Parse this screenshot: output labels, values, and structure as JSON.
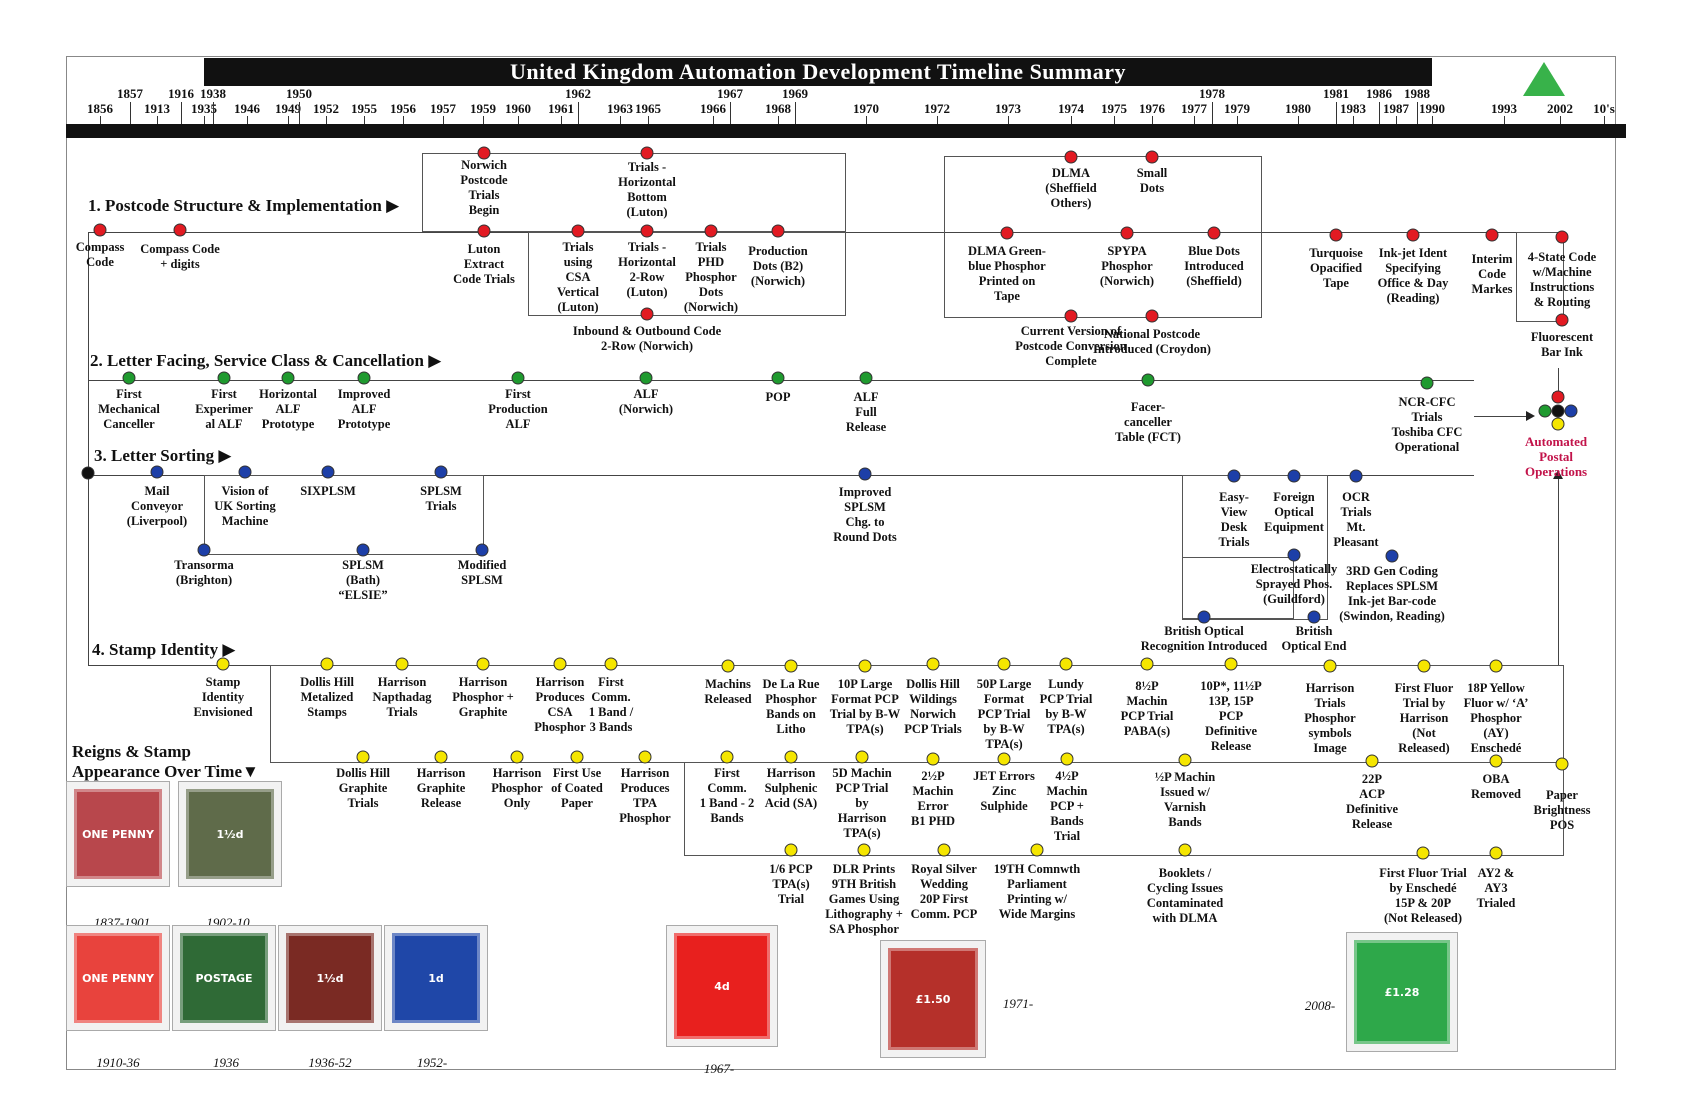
{
  "title": "United Kingdom Automation Development Timeline Summary",
  "years": [
    {
      "label": "1856",
      "row": "low"
    },
    {
      "label": "1857",
      "row": "high"
    },
    {
      "label": "1913",
      "row": "low"
    },
    {
      "label": "1916",
      "row": "high"
    },
    {
      "label": "1935",
      "row": "low"
    },
    {
      "label": "1938",
      "row": "high"
    },
    {
      "label": "1946",
      "row": "low"
    },
    {
      "label": "1949",
      "row": "low"
    },
    {
      "label": "1950",
      "row": "high"
    },
    {
      "label": "1952",
      "row": "low"
    },
    {
      "label": "1955",
      "row": "low"
    },
    {
      "label": "1956",
      "row": "low"
    },
    {
      "label": "1957",
      "row": "low"
    },
    {
      "label": "1959",
      "row": "low"
    },
    {
      "label": "1960",
      "row": "low"
    },
    {
      "label": "1961",
      "row": "low"
    },
    {
      "label": "1962",
      "row": "high"
    },
    {
      "label": "1963",
      "row": "low"
    },
    {
      "label": "1965",
      "row": "low"
    },
    {
      "label": "1966",
      "row": "low"
    },
    {
      "label": "1967",
      "row": "high"
    },
    {
      "label": "1968",
      "row": "low"
    },
    {
      "label": "1969",
      "row": "high"
    },
    {
      "label": "1970",
      "row": "low"
    },
    {
      "label": "1972",
      "row": "low"
    },
    {
      "label": "1973",
      "row": "low"
    },
    {
      "label": "1974",
      "row": "low"
    },
    {
      "label": "1975",
      "row": "low"
    },
    {
      "label": "1976",
      "row": "low"
    },
    {
      "label": "1977",
      "row": "low"
    },
    {
      "label": "1978",
      "row": "high"
    },
    {
      "label": "1979",
      "row": "low"
    },
    {
      "label": "1980",
      "row": "low"
    },
    {
      "label": "1981",
      "row": "high"
    },
    {
      "label": "1983",
      "row": "low"
    },
    {
      "label": "1986",
      "row": "high"
    },
    {
      "label": "1987",
      "row": "low"
    },
    {
      "label": "1988",
      "row": "high"
    },
    {
      "label": "1990",
      "row": "low"
    },
    {
      "label": "1993",
      "row": "low"
    },
    {
      "label": "2002",
      "row": "low"
    },
    {
      "label": "10's",
      "row": "low"
    }
  ],
  "sections": {
    "s1": "1. Postcode Structure & Implementation",
    "s2": "2. Letter Facing, Service Class & Cancellation",
    "s3": "3. Letter Sorting",
    "s4": "4. Stamp Identity"
  },
  "postcode_events": [
    "Compass\nCode",
    "Compass Code\n+ digits",
    "Norwich\nPostcode\nTrials\nBegin",
    "Luton\nExtract\nCode Trials",
    "Trials\nusing\nCSA\nVertical\n(Luton)",
    "Trials -\nHorizontal\nBottom\n(Luton)",
    "Trials -\nHorizontal\n2-Row\n(Luton)",
    "Trials\nPHD\nPhosphor\nDots\n(Norwich)",
    "Production\nDots (B2)\n(Norwich)",
    "Inbound & Outbound Code\n2-Row (Norwich)",
    "DLMA\n(Sheffield\nOthers)",
    "Small\nDots",
    "DLMA Green-\nblue Phosphor\nPrinted on\nTape",
    "SPYPA\nPhosphor\n(Norwich)",
    "Blue Dots\nIntroduced\n(Sheffield)",
    "Current Version of\nPostcode Conversion\nComplete",
    "National Postcode\nIntroduced (Croydon)",
    "Turquoise\nOpacified\nTape",
    "Ink-jet Ident\nSpecifying\nOffice & Day\n(Reading)",
    "Interim\nCode\nMarkes",
    "4-State Code\nw/Machine\nInstructions\n& Routing",
    "Fluorescent\nBar Ink"
  ],
  "facing_events": [
    "First\nMechanical\nCanceller",
    "First\nExperimer\nal ALF",
    "Horizontal\nALF\nPrototype",
    "Improved\nALF\nPrototype",
    "First\nProduction\nALF",
    "ALF\n(Norwich)",
    "POP",
    "ALF\nFull\nRelease",
    "Facer-\ncanceller\nTable (FCT)",
    "NCR-CFC\nTrials\nToshiba CFC\nOperational"
  ],
  "sorting_events": [
    "Mail\nConveyor\n(Liverpool)",
    "Vision of\nUK Sorting\nMachine",
    "SIXPLSM",
    "SPLSM\nTrials",
    "Transorma\n(Brighton)",
    "SPLSM\n(Bath)\n“ELSIE”",
    "Modified\nSPLSM",
    "Improved\nSPLSM\nChg. to\nRound Dots",
    "Easy-\nView\nDesk\nTrials",
    "Foreign\nOptical\nEquipment",
    "OCR\nTrials\nMt.\nPleasant",
    "Electrostatically\nSprayed Phos.\n(Guildford)",
    "3RD Gen Coding\nReplaces SPLSM\nInk-jet Bar-code\n(Swindon, Reading)",
    "British Optical\nRecognition Introduced",
    "British\nOptical End"
  ],
  "stamp_events": [
    "Stamp\nIdentity\nEnvisioned",
    "Dollis Hill\nMetalized\nStamps",
    "Harrison\nNapthadag\nTrials",
    "Harrison\nPhosphor +\nGraphite",
    "Harrison\nProduces\nCSA\nPhosphor",
    "First\nComm.\n1 Band /\n3 Bands",
    "Machins\nReleased",
    "De La Rue\nPhosphor\nBands on\nLitho",
    "10P Large\nFormat PCP\nTrial by B-W\nTPA(s)",
    "Dollis Hill\nWildings\nNorwich\nPCP Trials",
    "50P Large\nFormat\nPCP Trial\nby B-W\nTPA(s)",
    "Lundy\nPCP Trial\nby B-W\nTPA(s)",
    "8½P\nMachin\nPCP Trial\nPABA(s)",
    "10P*, 11½P\n13P, 15P\nPCP\nDefinitive\nRelease",
    "Harrison\nTrials\nPhosphor\nsymbols\nImage",
    "First Fluor\nTrial by\nHarrison\n(Not\nReleased)",
    "18P Yellow\nFluor w/ ‘A’\nPhosphor\n(AY)\nEnschedé",
    "Dollis Hill\nGraphite\nTrials",
    "Harrison\nGraphite\nRelease",
    "Harrison\nPhosphor\nOnly",
    "First Use\nof Coated\nPaper",
    "Harrison\nProduces\nTPA\nPhosphor",
    "First\nComm.\n1 Band - 2\nBands",
    "Harrison\nSulphenic\nAcid (SA)",
    "5D Machin\nPCP Trial\nby\nHarrison\nTPA(s)",
    "2½P\nMachin\nError\nB1 PHD",
    "JET Errors\nZinc\nSulphide",
    "4½P\nMachin\nPCP +\nBands\nTrial",
    "½P Machin\nIssued w/\nVarnish\nBands",
    "22P\nACP\nDefinitive\nRelease",
    "OBA\nRemoved",
    "Paper\nBrightness\nPOS",
    "1/6 PCP\nTPA(s)\nTrial",
    "DLR Prints\n9TH British\nGames Using\nLithography +\nSA Phosphor",
    "Royal Silver\nWedding\n20P First\nComm. PCP",
    "19TH Comnwth\nParliament\nPrinting w/\nWide Margins",
    "Booklets /\nCycling Issues\nContaminated\nwith DLMA",
    "First Fluor Trial\nby Enschedé\n15P & 20P\n(Not Released)",
    "AY2 &\nAY3\nTrialed"
  ],
  "outcome": "Automated\nPostal\nOperations",
  "reigns": {
    "heading": "Reigns & Stamp\nAppearance Over Time",
    "stamps": [
      {
        "caption": "1837-1901",
        "text": "ONE PENNY",
        "color": "#b8474c"
      },
      {
        "caption": "1902-10",
        "text": "1½d",
        "color": "#5f6b4a"
      },
      {
        "caption": "1910-36",
        "text": "ONE PENNY",
        "color": "#e8433d"
      },
      {
        "caption": "1936",
        "text": "POSTAGE",
        "color": "#2f6a36"
      },
      {
        "caption": "1936-52",
        "text": "1½d",
        "color": "#7a2a23"
      },
      {
        "caption": "1952-",
        "text": "1d",
        "color": "#1f47a8"
      },
      {
        "caption": "1967-",
        "text": "4d",
        "color": "#e8201e"
      },
      {
        "caption": "",
        "text": "£1.50",
        "color": "#b5302a"
      },
      {
        "caption": "",
        "text": "£1.28",
        "color": "#2ea84a"
      }
    ],
    "extra_captions": [
      "1971-",
      "2008-"
    ]
  },
  "colors": {
    "postcode": "#e21a22",
    "facing": "#1f9a2f",
    "sorting": "#1d3fa8",
    "stamp": "#f5e600",
    "outcome": "#c2134a",
    "triangle": "#38b24a"
  }
}
